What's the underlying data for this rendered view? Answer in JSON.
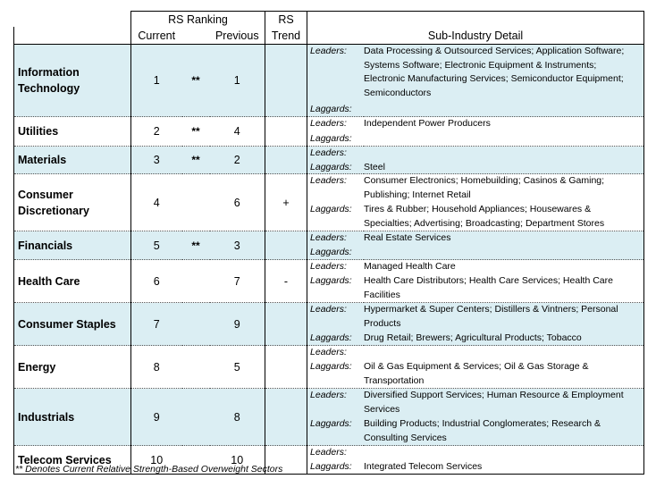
{
  "header": {
    "rs_ranking": "RS Ranking",
    "rs_trend_top": "RS",
    "current": "Current",
    "previous": "Previous",
    "trend": "Trend",
    "sub_industry": "Sub-Industry Detail"
  },
  "labels": {
    "leaders": "Leaders:",
    "laggards": "Laggards:"
  },
  "rows": [
    {
      "sector": "Information Technology",
      "current": "1",
      "star": "**",
      "previous": "1",
      "trend": "",
      "leaders": "Data Processing & Outsourced Services; Application Software; Systems Software; Electronic Equipment & Instruments; Electronic Manufacturing Services; Semiconductor Equipment; Semiconductors",
      "laggards": ""
    },
    {
      "sector": "Utilities",
      "current": "2",
      "star": "**",
      "previous": "4",
      "trend": "",
      "leaders": "Independent Power Producers",
      "laggards": ""
    },
    {
      "sector": "Materials",
      "current": "3",
      "star": "**",
      "previous": "2",
      "trend": "",
      "leaders": "",
      "laggards": "Steel"
    },
    {
      "sector": "Consumer Discretionary",
      "current": "4",
      "star": "",
      "previous": "6",
      "trend": "+",
      "leaders": "Consumer Electronics; Homebuilding; Casinos & Gaming; Publishing; Internet Retail",
      "laggards": "Tires & Rubber; Household Appliances; Housewares & Specialties; Advertising; Broadcasting; Department Stores"
    },
    {
      "sector": "Financials",
      "current": "5",
      "star": "**",
      "previous": "3",
      "trend": "",
      "leaders": "Real Estate Services",
      "laggards": ""
    },
    {
      "sector": "Health Care",
      "current": "6",
      "star": "",
      "previous": "7",
      "trend": "-",
      "leaders": "Managed Health Care",
      "laggards": "Health Care Distributors; Health Care Services; Health Care Facilities"
    },
    {
      "sector": "Consumer Staples",
      "current": "7",
      "star": "",
      "previous": "9",
      "trend": "",
      "leaders": "Hypermarket & Super Centers; Distillers & Vintners; Personal Products",
      "laggards": "Drug Retail; Brewers; Agricultural Products; Tobacco"
    },
    {
      "sector": "Energy",
      "current": "8",
      "star": "",
      "previous": "5",
      "trend": "",
      "leaders": "",
      "laggards": "Oil & Gas Equipment & Services; Oil & Gas Storage & Transportation"
    },
    {
      "sector": "Industrials",
      "current": "9",
      "star": "",
      "previous": "8",
      "trend": "",
      "leaders": "Diversified Support Services; Human Resource & Employment Services",
      "laggards": "Building Products; Industrial Conglomerates; Research & Consulting Services"
    },
    {
      "sector": "Telecom Services",
      "current": "10",
      "star": "",
      "previous": "10",
      "trend": "",
      "leaders": "",
      "laggards": "Integrated Telecom Services"
    }
  ],
  "footnote": "** Denotes Current Relative Strength-Based Overweight Sectors",
  "colors": {
    "shade": "#dbeef3"
  }
}
